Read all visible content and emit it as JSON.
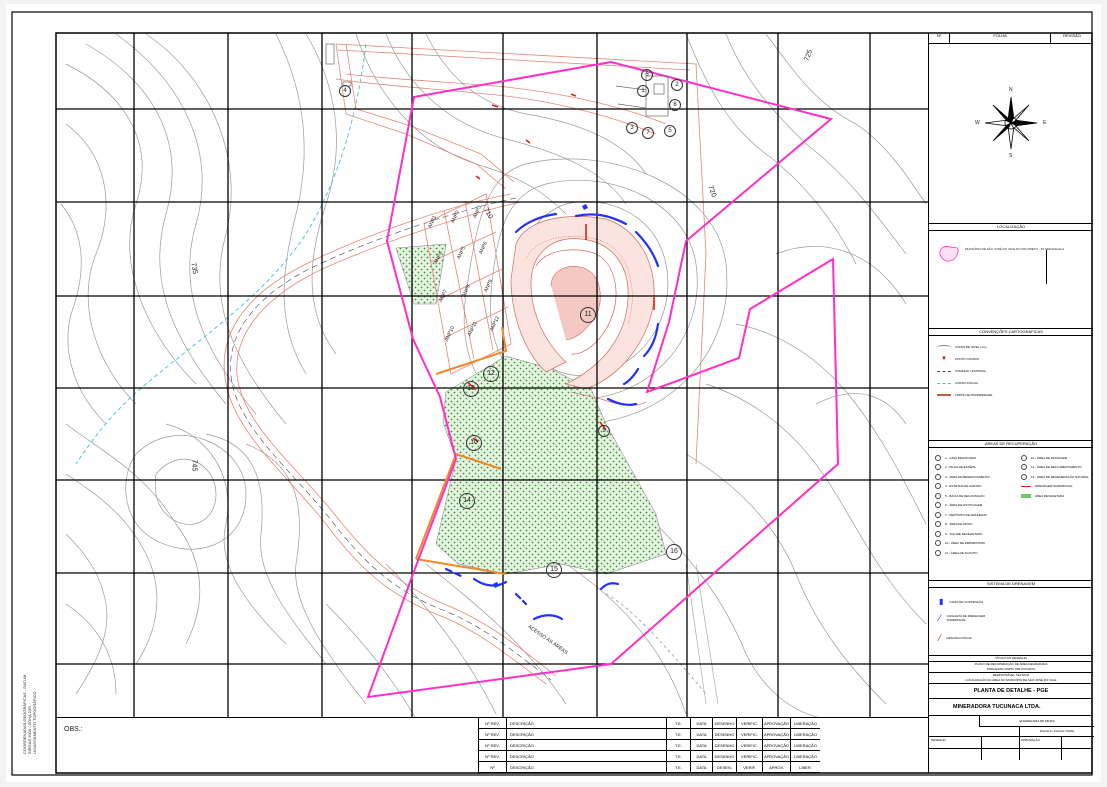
{
  "map": {
    "contour_labels": [
      "710",
      "720",
      "725",
      "735",
      "745"
    ],
    "area_numbers": [
      "1",
      "2",
      "3",
      "4",
      "5",
      "6",
      "7",
      "8",
      "9",
      "10",
      "11",
      "12",
      "13",
      "14",
      "15",
      "16"
    ],
    "lot_labels": [
      "ANP1",
      "ANP2",
      "ANP3",
      "ANP4",
      "ANP5",
      "ANP6",
      "ANP7",
      "ANP8",
      "ANP9",
      "ANP10",
      "ANP11",
      "ANP12"
    ],
    "road_label": "ACESSO ÀS ÁREAS"
  },
  "right_panel": {
    "header": [
      "Nº",
      "FOLHA",
      "REVISÃO"
    ],
    "north_letters": {
      "n": "N",
      "s": "S",
      "e": "E",
      "w": "W"
    },
    "location_title": "LOCALIZAÇÃO",
    "location_text_left": "MUNICÍPIO DE SÃO JOSÉ DO VALE DO RIO PRETO - RJ",
    "location_text_right": "SEM ESCALA",
    "conventions_title": "CONVENÇÕES CARTOGRÁFICAS",
    "conventions": [
      "CURVA DE NÍVEL (1m)",
      "PONTO COTADO",
      "CAMINHO / ESTRADA",
      "CURSO D'ÁGUA",
      "LIMITE DE PROPRIEDADE"
    ],
    "recovery_title": "ÁREAS DE RECUPERAÇÃO",
    "recovery_left": [
      "1 - CAVA DESATIVADA",
      "2 - PILHA DE ESTÉRIL",
      "3 - ÁREA DE BENEFICIAMENTO",
      "4 - ESTRADA DE ACESSO",
      "5 - BACIA DE DECANTAÇÃO",
      "6 - ÁREA DE ESTOCAGEM",
      "7 - DEPÓSITO DE MATERIAIS",
      "8 - ÁREA DE APOIO",
      "9 - TALUDE REVEGETADO",
      "10 - ÁREA DE EMPRÉSTIMO",
      "11 - ÁREA DE PLANTIO"
    ],
    "recovery_right": [
      "12 - ÁREA DE PASTAGEM",
      "13 - ÁREA DE REFLORESTAMENTO",
      "14 - ÁREA DE REGENERAÇÃO NATURAL",
      "DRENAGEM SUPERFICIAL",
      "ÁREA REVEGETADA"
    ],
    "drainage_title": "SISTEMA DE DRENAGEM",
    "drainage": [
      "CAIXA DE CONTENÇÃO",
      "CANALETA DE DRENAGEM SUPERFICIAL",
      "DESCIDA D'ÁGUA"
    ],
    "title_block": {
      "label1": "TÍTULO DO DESENHO",
      "line1": "PLANO DE RECUPERAÇÃO DE ÁREA DEGRADADA",
      "line2": "PROCESSO DNPM: 890.XXX/20XX",
      "line3": "RESPONSÁVEL TÉCNICO",
      "line4": "LOCALIZAÇÃO DA ÁREA NO MUNICÍPIO DE SÃO JOSÉ DO VALE",
      "drawing_title": "PLANTA DE DETALHE - PGE",
      "company": "MINERADORA TUCUNACA LTDA.",
      "small1": "ENGENHARIA DE MINAS",
      "small2": "ESCALA / FOLHA / DATA",
      "small3": "DESENHO",
      "small4": "APROVAÇÃO"
    }
  },
  "revision_table": {
    "header": [
      "Nº REV.",
      "DESCRIÇÃO",
      "T.E.",
      "DATA",
      "DESENHO",
      "VERIFIC.",
      "APROVAÇÃO",
      "LIBERAÇÃO"
    ],
    "footer": [
      "Nº",
      "DESCRIÇÃO",
      "T.E.",
      "DATA",
      "DESEN.",
      "VERIF.",
      "APROV.",
      "LIBER."
    ]
  },
  "obs_label": "OBS.:",
  "side_note": [
    "COORDENADAS GEOGRÁFICAS - DATUM",
    "SIRGAS 2000 - ZONA 23S",
    "LEVANTAMENTO TOPOGRÁFICO"
  ]
}
